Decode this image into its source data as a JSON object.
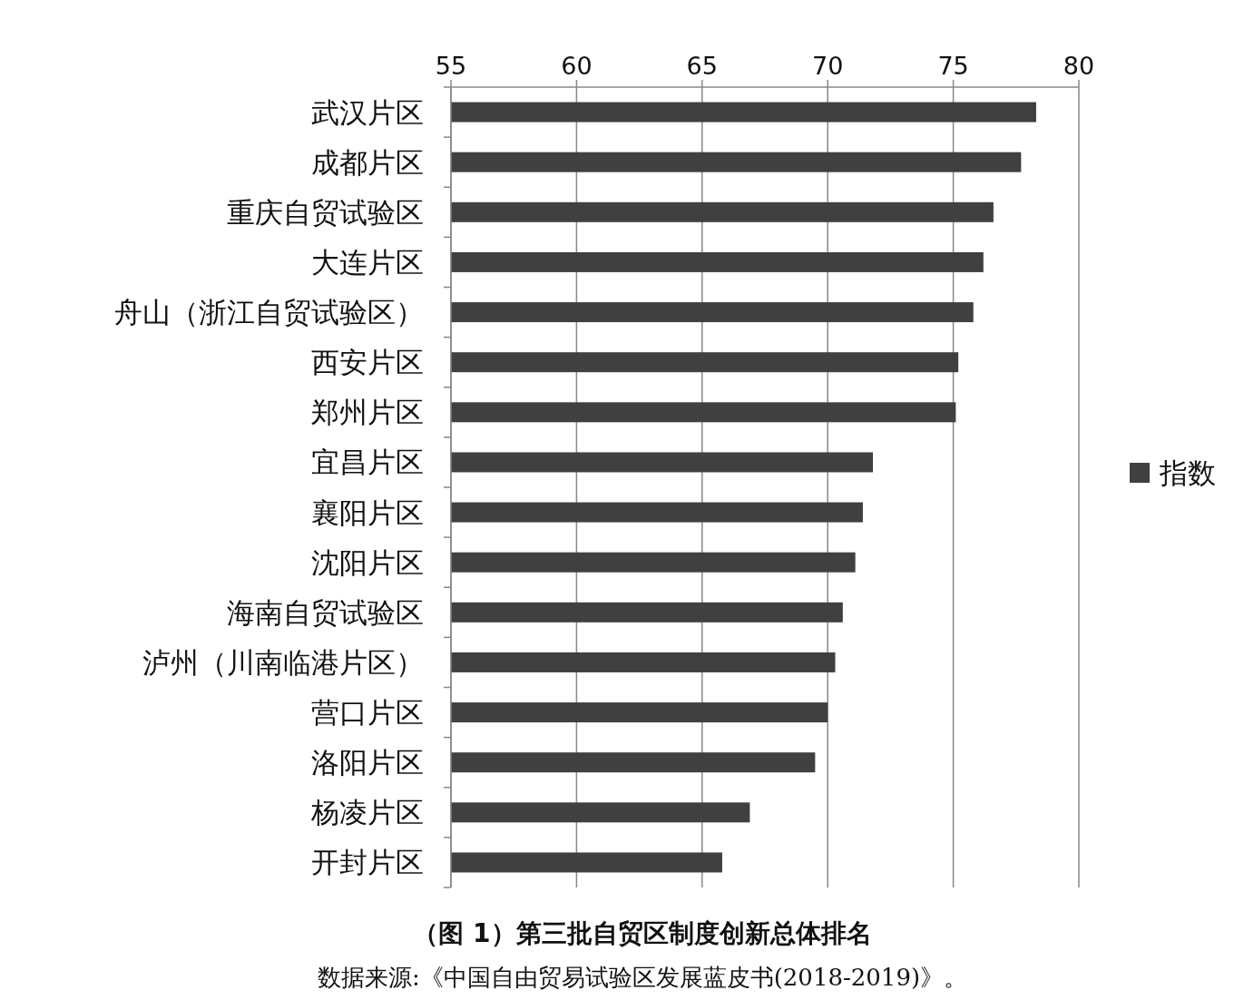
{
  "chart_data": {
    "type": "bar",
    "orientation": "horizontal",
    "title": "（图 1）第三批自贸区制度创新总体排名",
    "annotations": [
      "数据来源:《中国自由贸易试验区发展蓝皮书(2018-2019)》。"
    ],
    "categories": [
      "武汉片区",
      "成都片区",
      "重庆自贸试验区",
      "大连片区",
      "舟山（浙江自贸试验区）",
      "西安片区",
      "郑州片区",
      "宜昌片区",
      "襄阳片区",
      "沈阳片区",
      "海南自贸试验区",
      "泸州（川南临港片区）",
      "营口片区",
      "洛阳片区",
      "杨凌片区",
      "开封片区"
    ],
    "series": [
      {
        "name": "指数",
        "color": "#404040",
        "values": [
          78.3,
          77.7,
          76.6,
          76.2,
          75.8,
          75.2,
          75.1,
          71.8,
          71.4,
          71.1,
          70.6,
          70.3,
          70.0,
          69.5,
          66.9,
          65.8
        ]
      }
    ],
    "xlim": [
      55,
      80
    ],
    "xticks": [
      55,
      60,
      65,
      70,
      75,
      80
    ],
    "grid": "x",
    "legend": "right"
  }
}
